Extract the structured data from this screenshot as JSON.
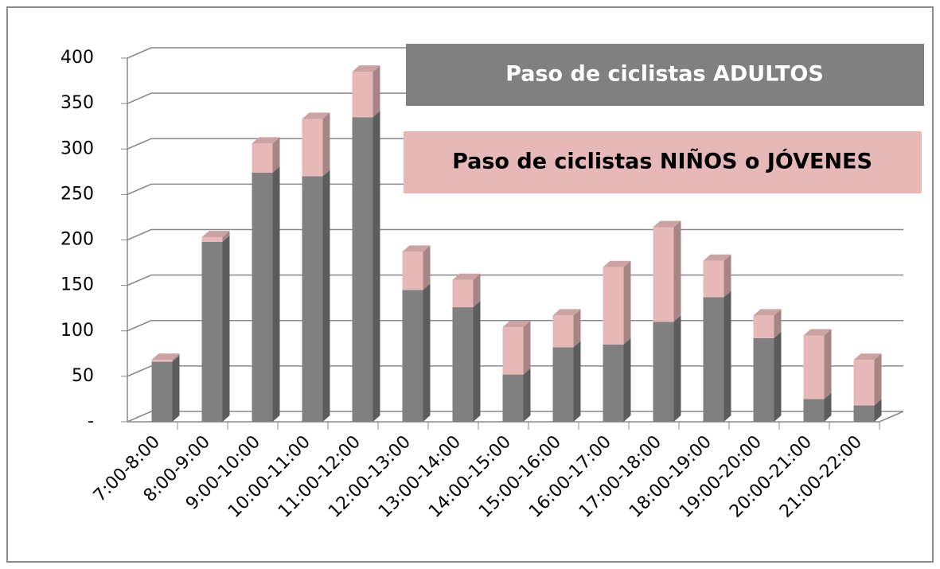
{
  "chart_data": {
    "type": "bar3d_stacked",
    "categories": [
      "7:00-8:00",
      "8:00-9:00",
      "9:00-10:00",
      "10:00-11:00",
      "11:00-12:00",
      "12:00-13:00",
      "13:00-14:00",
      "14:00-15:00",
      "15:00-16:00",
      "16:00-17:00",
      "17:00-18:00",
      "18:00-19:00",
      "19:00-20:00",
      "20:00-21:00",
      "21:00-22:00"
    ],
    "series": [
      {
        "name": "Paso de ciclistas ADULTOS",
        "color": "#808080",
        "values": [
          66,
          198,
          274,
          270,
          335,
          145,
          126,
          52,
          82,
          85,
          110,
          137,
          92,
          25,
          18
        ]
      },
      {
        "name": "Paso de ciclistas NIÑOS o JÓVENES",
        "color": "#e6b9b8",
        "values": [
          2,
          5,
          32,
          63,
          50,
          42,
          30,
          52,
          35,
          85,
          104,
          40,
          25,
          70,
          50
        ]
      }
    ],
    "ylim": [
      0,
      400
    ],
    "yticks": [
      {
        "value": 0,
        "label": "-"
      },
      50,
      100,
      150,
      200,
      250,
      300,
      350,
      400
    ],
    "grid": true
  }
}
